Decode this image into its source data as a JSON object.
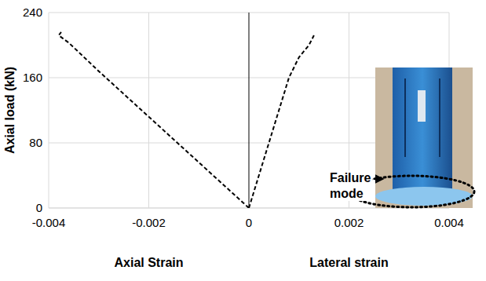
{
  "chart_data": {
    "type": "line",
    "ylabel": "Axial load (kN)",
    "xlabels": [
      "Axial Strain",
      "Lateral strain"
    ],
    "annotation": "Failure mode",
    "xlim": [
      -0.004,
      0.004
    ],
    "xticks": [
      -0.004,
      -0.002,
      0,
      0.002,
      0.004
    ],
    "ylim": [
      0,
      240
    ],
    "yticks": [
      0,
      80,
      160,
      240
    ],
    "grid": true,
    "series": [
      {
        "color": "#000000",
        "line_style": "dashed",
        "x": [
          0,
          -0.001,
          -0.002,
          -0.003,
          -0.0036,
          -0.0038,
          -0.00375
        ],
        "values": [
          0,
          56,
          112,
          168,
          203,
          212,
          216
        ]
      },
      {
        "color": "#000000",
        "line_style": "dashed",
        "x": [
          0,
          0.0002,
          0.0004,
          0.0006,
          0.0008,
          0.001,
          0.0012,
          0.0013
        ],
        "values": [
          0,
          40,
          80,
          120,
          160,
          185,
          200,
          212
        ]
      }
    ]
  }
}
